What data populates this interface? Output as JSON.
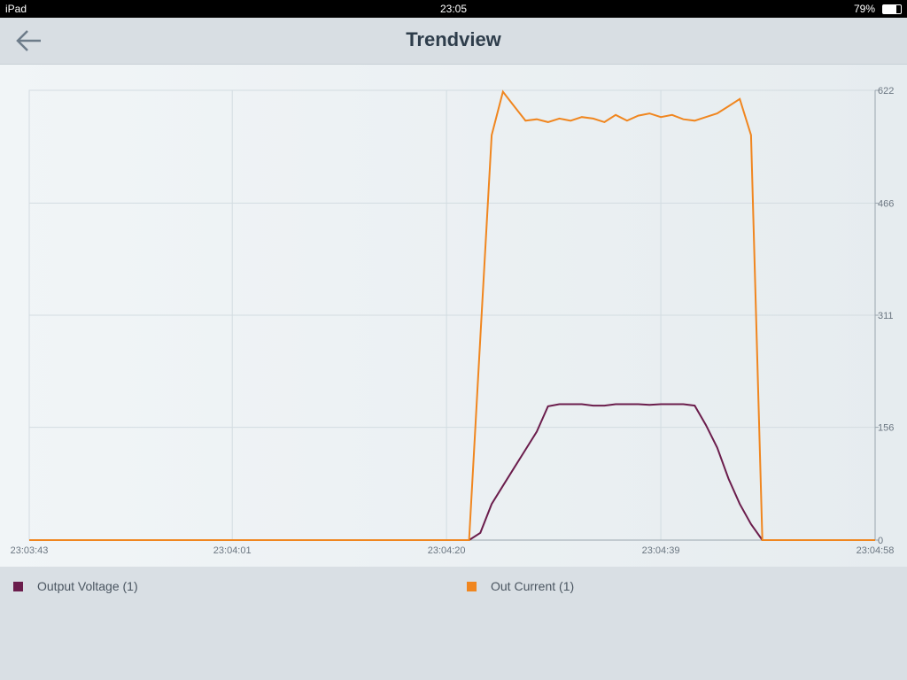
{
  "status_bar": {
    "device": "iPad",
    "time": "23:05",
    "battery": "79%"
  },
  "header": {
    "title": "Trendview"
  },
  "chart_data": {
    "type": "line",
    "x": [
      "23:03:43",
      "23:03:44",
      "23:03:45",
      "23:03:46",
      "23:03:47",
      "23:03:48",
      "23:03:49",
      "23:03:50",
      "23:03:51",
      "23:03:52",
      "23:03:53",
      "23:03:54",
      "23:03:55",
      "23:03:56",
      "23:03:57",
      "23:03:58",
      "23:03:59",
      "23:04:00",
      "23:04:01",
      "23:04:02",
      "23:04:03",
      "23:04:04",
      "23:04:05",
      "23:04:06",
      "23:04:07",
      "23:04:08",
      "23:04:09",
      "23:04:10",
      "23:04:11",
      "23:04:12",
      "23:04:13",
      "23:04:14",
      "23:04:15",
      "23:04:16",
      "23:04:17",
      "23:04:18",
      "23:04:19",
      "23:04:20",
      "23:04:21",
      "23:04:22",
      "23:04:23",
      "23:04:24",
      "23:04:25",
      "23:04:26",
      "23:04:27",
      "23:04:28",
      "23:04:29",
      "23:04:30",
      "23:04:31",
      "23:04:32",
      "23:04:33",
      "23:04:34",
      "23:04:35",
      "23:04:36",
      "23:04:37",
      "23:04:38",
      "23:04:39",
      "23:04:40",
      "23:04:41",
      "23:04:42",
      "23:04:43",
      "23:04:44",
      "23:04:45",
      "23:04:46",
      "23:04:47",
      "23:04:48",
      "23:04:49",
      "23:04:50",
      "23:04:51",
      "23:04:52",
      "23:04:53",
      "23:04:54",
      "23:04:55",
      "23:04:56",
      "23:04:57",
      "23:04:58"
    ],
    "series": [
      {
        "name": "Output Voltage  (1)",
        "color": "#6b1d4c",
        "values": [
          0,
          0,
          0,
          0,
          0,
          0,
          0,
          0,
          0,
          0,
          0,
          0,
          0,
          0,
          0,
          0,
          0,
          0,
          0,
          0,
          0,
          0,
          0,
          0,
          0,
          0,
          0,
          0,
          0,
          0,
          0,
          0,
          0,
          0,
          0,
          0,
          0,
          0,
          0,
          0,
          10,
          50,
          75,
          100,
          125,
          150,
          185,
          188,
          188,
          188,
          186,
          186,
          188,
          188,
          188,
          187,
          188,
          188,
          188,
          186,
          159,
          128,
          85,
          50,
          22,
          0,
          0,
          0,
          0,
          0,
          0,
          0,
          0,
          0,
          0,
          0
        ]
      },
      {
        "name": "Out Current  (1)",
        "color": "#f0861f",
        "values": [
          0,
          0,
          0,
          0,
          0,
          0,
          0,
          0,
          0,
          0,
          0,
          0,
          0,
          0,
          0,
          0,
          0,
          0,
          0,
          0,
          0,
          0,
          0,
          0,
          0,
          0,
          0,
          0,
          0,
          0,
          0,
          0,
          0,
          0,
          0,
          0,
          0,
          0,
          0,
          0,
          280,
          560,
          620,
          600,
          580,
          582,
          578,
          583,
          580,
          585,
          583,
          578,
          588,
          580,
          587,
          590,
          585,
          588,
          582,
          580,
          585,
          590,
          600,
          610,
          560,
          0,
          0,
          0,
          0,
          0,
          0,
          0,
          0,
          0,
          0,
          0
        ]
      }
    ],
    "xlim": [
      "23:03:43",
      "23:04:58"
    ],
    "xticks": [
      "23:03:43",
      "23:04:01",
      "23:04:20",
      "23:04:39",
      "23:04:58"
    ],
    "ylim": [
      0,
      622
    ],
    "yticks": [
      0,
      156,
      311,
      466,
      622
    ],
    "grid": true
  }
}
